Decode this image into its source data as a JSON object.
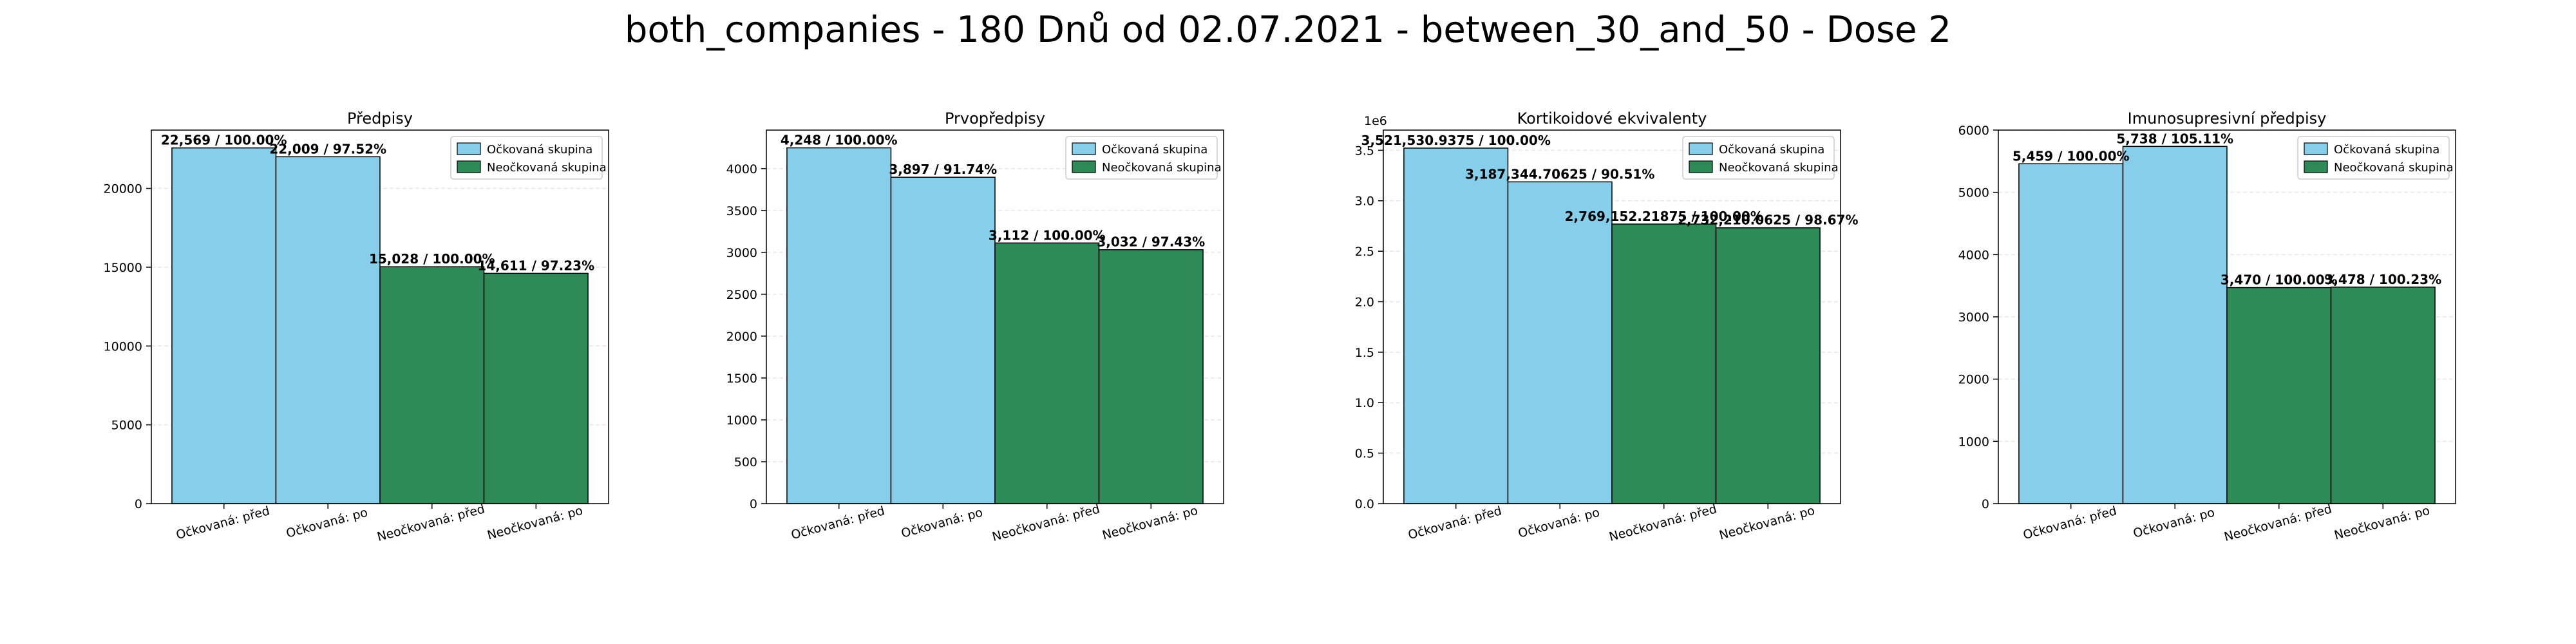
{
  "suptitle": "both_companies - 180 Dnů od 02.07.2021 - between_30_and_50 - Dose 2",
  "colors": {
    "vaccinated": "#87ceeb",
    "unvaccinated": "#2e8b57",
    "edge": "#000000",
    "grid": "#e6e6e6"
  },
  "chart_data": [
    {
      "type": "bar",
      "title": "Předpisy",
      "categories": [
        "Očkovaná: před",
        "Očkovaná: po",
        "Neočkovaná: před",
        "Neočkovaná: po"
      ],
      "values": [
        22569,
        22009,
        15028,
        14611
      ],
      "data_labels": [
        "22,569 / 100.00%",
        "22,009 / 97.52%",
        "15,028 / 100.00%",
        "14,611 / 97.23%"
      ],
      "groups": [
        "vaccinated",
        "vaccinated",
        "unvaccinated",
        "unvaccinated"
      ],
      "legend": [
        "Očkovaná skupina",
        "Neočkovaná skupina"
      ],
      "legend_position": "top-right",
      "ylim": [
        0,
        23700
      ],
      "yticks": [
        0,
        5000,
        10000,
        15000,
        20000
      ],
      "ytick_labels": [
        "0",
        "5000",
        "10000",
        "15000",
        "20000"
      ],
      "offset_label": "",
      "grid": true
    },
    {
      "type": "bar",
      "title": "Prvopředpisy",
      "categories": [
        "Očkovaná: před",
        "Očkovaná: po",
        "Neočkovaná: před",
        "Neočkovaná: po"
      ],
      "values": [
        4248,
        3897,
        3112,
        3032
      ],
      "data_labels": [
        "4,248 / 100.00%",
        "3,897 / 91.74%",
        "3,112 / 100.00%",
        "3,032 / 97.43%"
      ],
      "groups": [
        "vaccinated",
        "vaccinated",
        "unvaccinated",
        "unvaccinated"
      ],
      "legend": [
        "Očkovaná skupina",
        "Neočkovaná skupina"
      ],
      "legend_position": "top-right",
      "ylim": [
        0,
        4460
      ],
      "yticks": [
        0,
        500,
        1000,
        1500,
        2000,
        2500,
        3000,
        3500,
        4000
      ],
      "ytick_labels": [
        "0",
        "500",
        "1000",
        "1500",
        "2000",
        "2500",
        "3000",
        "3500",
        "4000"
      ],
      "offset_label": "",
      "grid": true
    },
    {
      "type": "bar",
      "title": "Kortikoidové ekvivalenty",
      "categories": [
        "Očkovaná: před",
        "Očkovaná: po",
        "Neočkovaná: před",
        "Neočkovaná: po"
      ],
      "values": [
        3521530.9375,
        3187344.70625,
        2769152.21875,
        2732210.0625
      ],
      "data_labels": [
        "3,521,530.9375 / 100.00%",
        "3,187,344.70625 / 90.51%",
        "2,769,152.21875 / 100.00%",
        "2,732,210.0625 / 98.67%"
      ],
      "groups": [
        "vaccinated",
        "vaccinated",
        "unvaccinated",
        "unvaccinated"
      ],
      "legend": [
        "Očkovaná skupina",
        "Neočkovaná skupina"
      ],
      "legend_position": "top-right",
      "ylim": [
        0,
        3700000
      ],
      "yticks": [
        0,
        500000,
        1000000,
        1500000,
        2000000,
        2500000,
        3000000,
        3500000
      ],
      "ytick_labels": [
        "0.0",
        "0.5",
        "1.0",
        "1.5",
        "2.0",
        "2.5",
        "3.0",
        "3.5"
      ],
      "offset_label": "1e6",
      "grid": true
    },
    {
      "type": "bar",
      "title": "Imunosupresivní předpisy",
      "categories": [
        "Očkovaná: před",
        "Očkovaná: po",
        "Neočkovaná: před",
        "Neočkovaná: po"
      ],
      "values": [
        5459,
        5738,
        3470,
        3478
      ],
      "data_labels": [
        "5,459 / 100.00%",
        "5,738 / 105.11%",
        "3,470 / 100.00%",
        "3,478 / 100.23%"
      ],
      "groups": [
        "vaccinated",
        "vaccinated",
        "unvaccinated",
        "unvaccinated"
      ],
      "legend": [
        "Očkovaná skupina",
        "Neočkovaná skupina"
      ],
      "legend_position": "top-right",
      "ylim": [
        0,
        6000
      ],
      "yticks": [
        0,
        1000,
        2000,
        3000,
        4000,
        5000,
        6000
      ],
      "ytick_labels": [
        "0",
        "1000",
        "2000",
        "3000",
        "4000",
        "5000",
        "6000"
      ],
      "offset_label": "",
      "grid": true
    }
  ]
}
